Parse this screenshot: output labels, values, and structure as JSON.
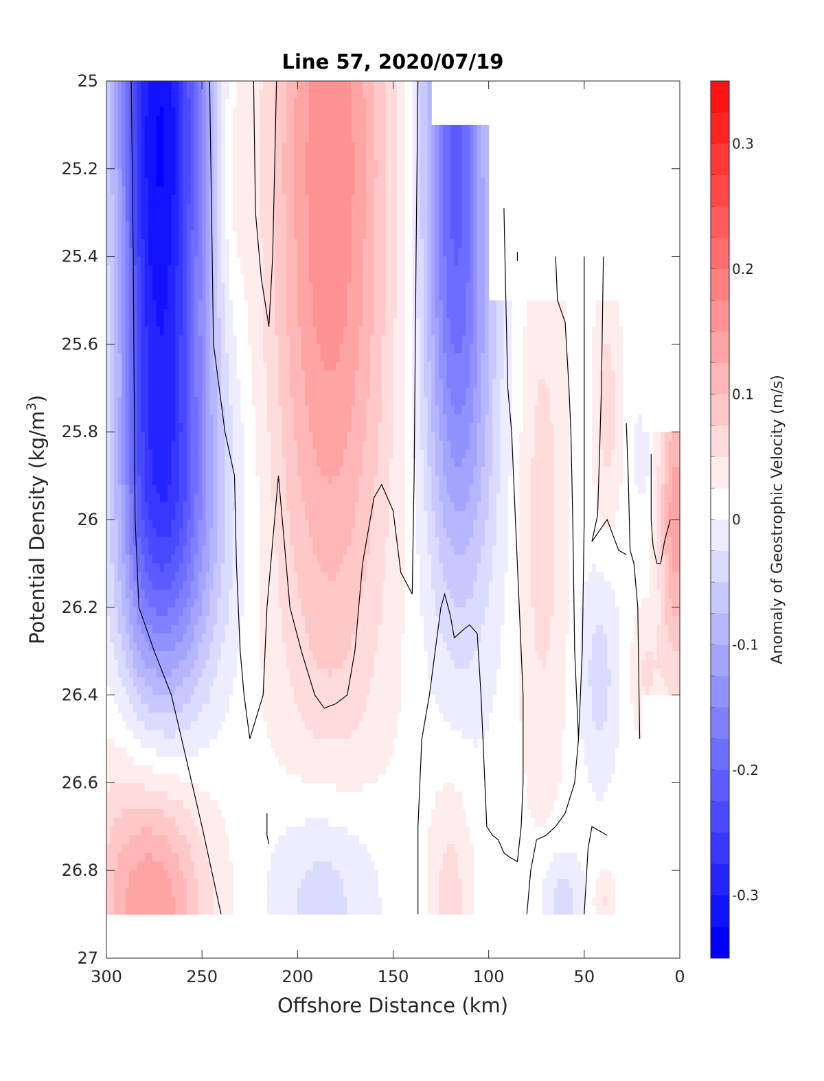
{
  "chart_data": {
    "type": "heatmap",
    "title": "Line 57, 2020/07/19",
    "xlabel": "Offshore Distance (km)",
    "ylabel_main": "Potential Density (kg/m",
    "ylabel_sup": "3",
    "ylabel_end": ")",
    "xlim": [
      300,
      0
    ],
    "ylim": [
      25,
      27
    ],
    "x_reversed": true,
    "y_reversed": true,
    "x_ticks": [
      300,
      250,
      200,
      150,
      100,
      50,
      0
    ],
    "x_tick_labels": [
      "300",
      "250",
      "200",
      "150",
      "100",
      "50",
      "0"
    ],
    "y_ticks": [
      25,
      25.2,
      25.4,
      25.6,
      25.8,
      26,
      26.2,
      26.4,
      26.6,
      26.8,
      27
    ],
    "y_tick_labels": [
      "25",
      "25.2",
      "25.4",
      "25.6",
      "25.8",
      "26",
      "26.2",
      "26.4",
      "26.6",
      "26.8",
      "27"
    ],
    "colorbar": {
      "label": "Anomaly of Geostrophic Velocity (m/s)",
      "range": [
        -0.35,
        0.35
      ],
      "step": 0.025,
      "ticks": [
        -0.3,
        -0.2,
        -0.1,
        0,
        0.1,
        0.2,
        0.3
      ],
      "tick_labels": [
        "-0.3",
        "-0.2",
        "-0.1",
        "0",
        "0.1",
        "0.2",
        "0.3"
      ],
      "negative_color": "#0000ff",
      "positive_color": "#ff0000",
      "neutral_color": "#ffffff"
    },
    "grid": false,
    "fields": [
      {
        "cx": 272,
        "cy": 25.15,
        "sx": 18,
        "sy": 0.75,
        "amp": -0.34
      },
      {
        "cx": 268,
        "cy": 26.0,
        "sx": 22,
        "sy": 0.25,
        "amp": -0.1
      },
      {
        "cx": 183,
        "cy": 25.2,
        "sx": 22,
        "sy": 0.85,
        "amp": 0.16
      },
      {
        "cx": 118,
        "cy": 25.05,
        "sx": 12,
        "sy": 0.55,
        "amp": -0.2
      },
      {
        "cx": 113,
        "cy": 25.75,
        "sx": 14,
        "sy": 0.4,
        "amp": -0.08
      },
      {
        "cx": 276,
        "cy": 26.88,
        "sx": 20,
        "sy": 0.25,
        "amp": 0.16
      },
      {
        "cx": 296,
        "cy": 25.6,
        "sx": 7,
        "sy": 0.55,
        "amp": 0.05
      },
      {
        "cx": 235,
        "cy": 25.2,
        "sx": 6,
        "sy": 0.25,
        "amp": 0.04
      },
      {
        "cx": 186,
        "cy": 26.85,
        "sx": 20,
        "sy": 0.18,
        "amp": -0.07
      },
      {
        "cx": 120,
        "cy": 26.85,
        "sx": 8,
        "sy": 0.2,
        "amp": 0.05
      },
      {
        "cx": 72,
        "cy": 26.0,
        "sx": 9,
        "sy": 0.45,
        "amp": 0.05
      },
      {
        "cx": 42,
        "cy": 26.35,
        "sx": 7,
        "sy": 0.17,
        "amp": -0.05
      },
      {
        "cx": 62,
        "cy": 26.87,
        "sx": 8,
        "sy": 0.08,
        "amp": -0.05
      },
      {
        "cx": 38,
        "cy": 25.75,
        "sx": 5,
        "sy": 0.2,
        "amp": 0.05
      },
      {
        "cx": 2,
        "cy": 26.0,
        "sx": 6,
        "sy": 0.25,
        "amp": 0.13
      },
      {
        "cx": 18,
        "cy": 26.35,
        "sx": 6,
        "sy": 0.1,
        "amp": 0.04
      },
      {
        "cx": 20,
        "cy": 25.85,
        "sx": 3,
        "sy": 0.06,
        "amp": -0.04
      },
      {
        "cx": 40,
        "cy": 26.87,
        "sx": 4,
        "sy": 0.05,
        "amp": 0.04
      }
    ],
    "data_extent": [
      {
        "x": [
          300,
          295
        ],
        "y": [
          25.0,
          26.9
        ]
      },
      {
        "x": [
          295,
          250
        ],
        "y": [
          25.0,
          26.9
        ]
      },
      {
        "x": [
          250,
          130
        ],
        "y": [
          25.0,
          26.9
        ]
      },
      {
        "x": [
          130,
          100
        ],
        "y": [
          25.1,
          26.9
        ]
      },
      {
        "x": [
          100,
          60
        ],
        "y": [
          25.5,
          26.9
        ]
      },
      {
        "x": [
          60,
          20
        ],
        "y": [
          25.5,
          26.9
        ]
      },
      {
        "x": [
          20,
          0
        ],
        "y": [
          25.8,
          26.4
        ]
      }
    ],
    "zero_contours": [
      [
        [
          287,
          25.0
        ],
        [
          286,
          25.4
        ],
        [
          285,
          26.0
        ],
        [
          283,
          26.2
        ],
        [
          275,
          26.3
        ],
        [
          266,
          26.4
        ],
        [
          258,
          26.55
        ],
        [
          250,
          26.7
        ],
        [
          245,
          26.8
        ],
        [
          240,
          26.9
        ]
      ],
      [
        [
          246,
          25.0
        ],
        [
          245,
          25.3
        ],
        [
          244,
          25.6
        ],
        [
          238,
          25.8
        ],
        [
          233,
          25.9
        ],
        [
          232,
          26.1
        ],
        [
          230,
          26.3
        ],
        [
          228,
          26.4
        ],
        [
          225,
          26.5
        ],
        [
          218,
          26.4
        ],
        [
          216,
          26.2
        ],
        [
          212,
          26.0
        ],
        [
          210,
          25.9
        ],
        [
          208,
          26.0
        ],
        [
          204,
          26.2
        ],
        [
          198,
          26.3
        ],
        [
          191,
          26.4
        ],
        [
          186,
          26.43
        ],
        [
          180,
          26.42
        ],
        [
          174,
          26.4
        ],
        [
          170,
          26.3
        ],
        [
          166,
          26.1
        ],
        [
          160,
          25.95
        ],
        [
          156,
          25.92
        ],
        [
          150,
          25.98
        ],
        [
          146,
          26.12
        ],
        [
          140,
          26.17
        ],
        [
          139,
          25.9
        ],
        [
          138,
          25.4
        ],
        [
          137,
          25.0
        ]
      ],
      [
        [
          223,
          25.0
        ],
        [
          222,
          25.3
        ],
        [
          219,
          25.45
        ],
        [
          215,
          25.56
        ],
        [
          213,
          25.4
        ],
        [
          212,
          25.2
        ],
        [
          211,
          25.0
        ]
      ],
      [
        [
          216,
          26.67
        ],
        [
          216,
          26.72
        ],
        [
          215,
          26.74
        ]
      ],
      [
        [
          137,
          26.9
        ],
        [
          137,
          26.7
        ],
        [
          135,
          26.5
        ],
        [
          131,
          26.4
        ],
        [
          128,
          26.3
        ],
        [
          125,
          26.2
        ],
        [
          123,
          26.17
        ],
        [
          120,
          26.22
        ],
        [
          118,
          26.27
        ],
        [
          113,
          26.25
        ],
        [
          110,
          26.24
        ],
        [
          106,
          26.26
        ],
        [
          104,
          26.4
        ],
        [
          102,
          26.6
        ],
        [
          101,
          26.7
        ],
        [
          98,
          26.72
        ],
        [
          95,
          26.73
        ],
        [
          92,
          26.76
        ],
        [
          89,
          26.77
        ],
        [
          85,
          26.78
        ],
        [
          83,
          26.7
        ],
        [
          82,
          26.6
        ],
        [
          82,
          26.4
        ],
        [
          84,
          26.2
        ],
        [
          86,
          26.0
        ],
        [
          88,
          25.8
        ],
        [
          90,
          25.7
        ],
        [
          91,
          25.5
        ],
        [
          92,
          25.29
        ]
      ],
      [
        [
          85,
          25.39
        ],
        [
          85,
          25.41
        ]
      ],
      [
        [
          80,
          26.9
        ],
        [
          78,
          26.8
        ],
        [
          75,
          26.73
        ],
        [
          70,
          26.72
        ],
        [
          65,
          26.7
        ],
        [
          60,
          26.67
        ],
        [
          55,
          26.6
        ],
        [
          53,
          26.5
        ],
        [
          51,
          26.3
        ],
        [
          50,
          26.0
        ],
        [
          50,
          25.4
        ]
      ],
      [
        [
          65,
          25.4
        ],
        [
          64,
          25.5
        ],
        [
          60,
          25.55
        ],
        [
          58,
          25.7
        ],
        [
          57,
          25.8
        ],
        [
          56,
          26.0
        ],
        [
          55,
          26.3
        ],
        [
          53,
          26.5
        ]
      ],
      [
        [
          50,
          26.9
        ],
        [
          48,
          26.75
        ],
        [
          46,
          26.7
        ],
        [
          42,
          26.71
        ],
        [
          38,
          26.72
        ]
      ],
      [
        [
          28,
          25.78
        ],
        [
          27,
          25.9
        ],
        [
          26,
          26.07
        ],
        [
          24,
          26.1
        ],
        [
          22,
          26.2
        ],
        [
          21,
          26.5
        ]
      ],
      [
        [
          15,
          25.85
        ],
        [
          15,
          26.0
        ],
        [
          14,
          26.06
        ],
        [
          12,
          26.1
        ],
        [
          10,
          26.1
        ],
        [
          8,
          26.05
        ],
        [
          5,
          26.0
        ]
      ],
      [
        [
          40,
          25.4
        ],
        [
          41,
          25.7
        ],
        [
          42,
          25.85
        ],
        [
          43,
          25.99
        ],
        [
          46,
          26.05
        ],
        [
          38,
          26.0
        ],
        [
          32,
          26.07
        ],
        [
          28,
          26.08
        ]
      ]
    ]
  }
}
